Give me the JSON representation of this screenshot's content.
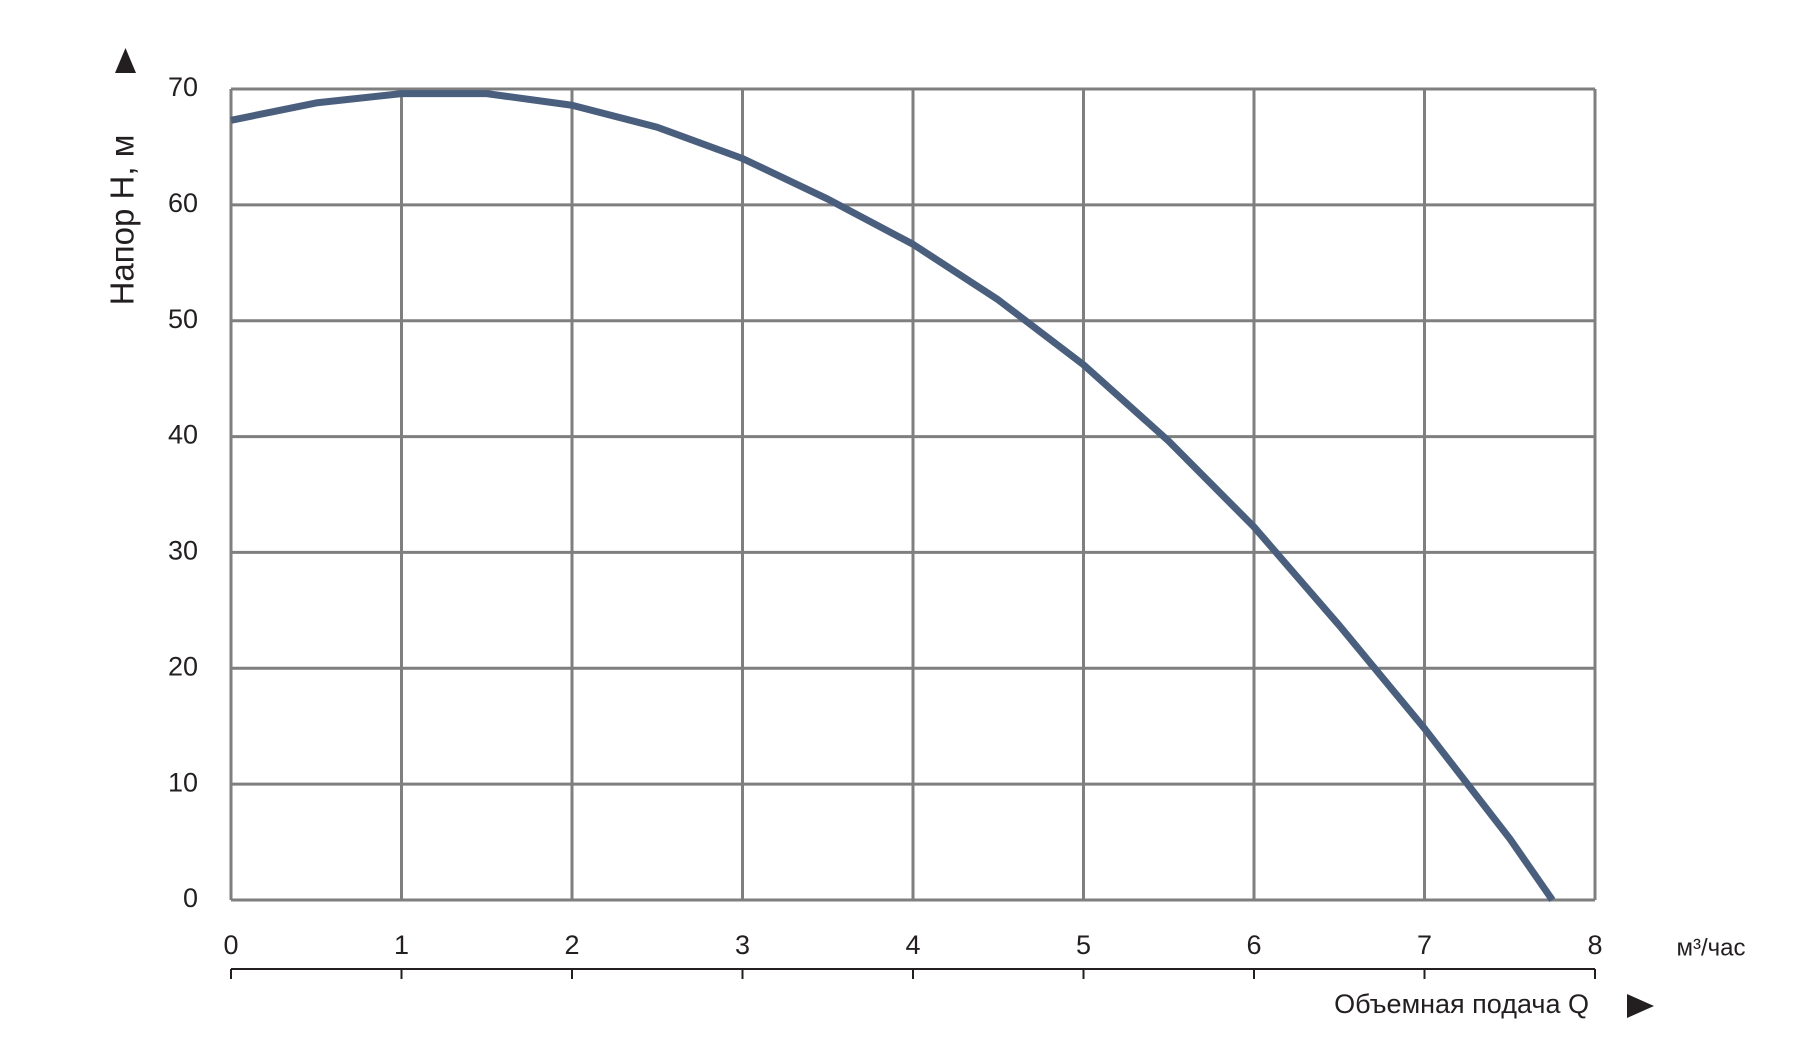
{
  "chart_data": {
    "type": "line",
    "y_label": "Напор H, м",
    "x_label": "Объемная подача Q",
    "x_unit": "м³/час",
    "x": [
      0,
      0.5,
      1,
      1.5,
      2,
      2.5,
      3,
      3.5,
      4,
      4.5,
      5,
      5.5,
      6,
      6.5,
      7,
      7.5,
      7.75
    ],
    "series": [
      {
        "color": "#4a5f7e",
        "values": [
          67.3,
          68.8,
          69.6,
          69.6,
          68.6,
          66.7,
          64.0,
          60.5,
          56.6,
          51.8,
          46.2,
          39.6,
          32.2,
          23.7,
          14.8,
          5.3,
          0
        ]
      }
    ],
    "xlim": [
      0,
      8
    ],
    "xticks": [
      0,
      1,
      2,
      3,
      4,
      5,
      6,
      7,
      8
    ],
    "ylim": [
      0,
      70
    ],
    "yticks": [
      0,
      10,
      20,
      30,
      40,
      50,
      60,
      70
    ],
    "grid": true
  }
}
